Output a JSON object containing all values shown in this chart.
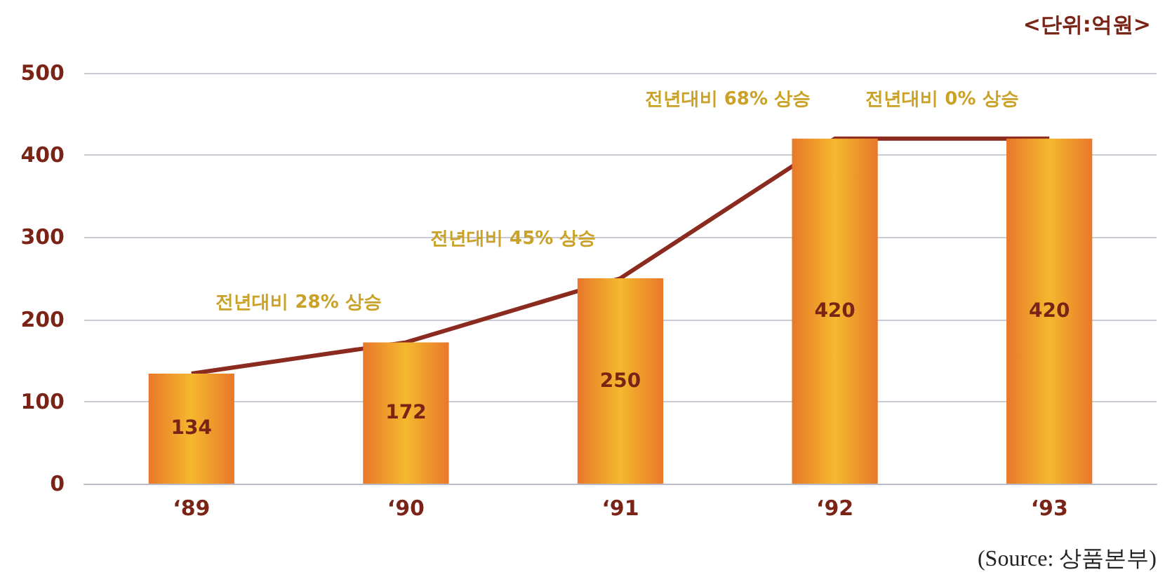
{
  "chart_data": {
    "type": "bar",
    "categories": [
      "‘89",
      "‘90",
      "‘91",
      "‘92",
      "‘93"
    ],
    "series": [
      {
        "color": "#f5b82e",
        "values": [
          134,
          172,
          250,
          420,
          420
        ]
      },
      {
        "type": "line",
        "color": "#8b2a1e",
        "values": [
          134,
          172,
          250,
          420,
          420
        ],
        "value_labels": [
          null,
          null,
          null,
          null,
          null
        ]
      }
    ],
    "ylim": [
      0,
      500
    ],
    "yticks": [
      0,
      100,
      200,
      300,
      400,
      500
    ],
    "grid": "y",
    "data_labels": true,
    "marker": "none",
    "annotations": [
      "전년대비 28% 상승",
      "전년대비 45% 상승",
      "전년대비 68% 상승",
      "전년대비 0% 상승",
      "<단위:억원>",
      "(Source: 상품본부)"
    ]
  }
}
